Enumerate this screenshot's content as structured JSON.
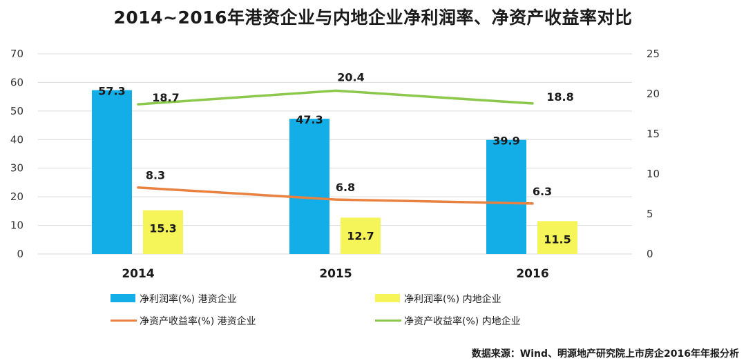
{
  "chart_data": {
    "type": "bar",
    "title": "2014~2016年港资企业与内地企业净利润率、净资产收益率对比",
    "categories": [
      "2014",
      "2015",
      "2016"
    ],
    "ylim": [
      0,
      70
    ],
    "y2lim": [
      0,
      25
    ],
    "y_ticks": [
      "0",
      "10",
      "20",
      "30",
      "40",
      "50",
      "60",
      "70"
    ],
    "y2_ticks": [
      "0",
      "5",
      "10",
      "15",
      "20",
      "25"
    ],
    "grid": true,
    "legend_position": "bottom",
    "series": [
      {
        "name": "净利润率(%) 港资企业",
        "kind": "bar",
        "axis": "left",
        "color": "#13aee8",
        "values": [
          57.3,
          47.3,
          39.9
        ],
        "labels": [
          "57.3",
          "47.3",
          "39.9"
        ]
      },
      {
        "name": "净利润率(%) 内地企业",
        "kind": "bar",
        "axis": "left",
        "color": "#f5f55a",
        "values": [
          15.3,
          12.7,
          11.5
        ],
        "labels": [
          "15.3",
          "12.7",
          "11.5"
        ]
      },
      {
        "name": "净资产收益率(%) 港资企业",
        "kind": "line",
        "axis": "right",
        "color": "#e98240",
        "values": [
          8.3,
          6.8,
          6.3
        ],
        "labels": [
          "8.3",
          "6.8",
          "6.3"
        ]
      },
      {
        "name": "净资产收益率(%) 内地企业",
        "kind": "line",
        "axis": "right",
        "color": "#8cc84b",
        "values": [
          18.7,
          20.4,
          18.8
        ],
        "labels": [
          "18.7",
          "20.4",
          "18.8"
        ]
      }
    ]
  },
  "source": "数据来源：Wind、明源地产研究院上市房企2016年年报分析"
}
